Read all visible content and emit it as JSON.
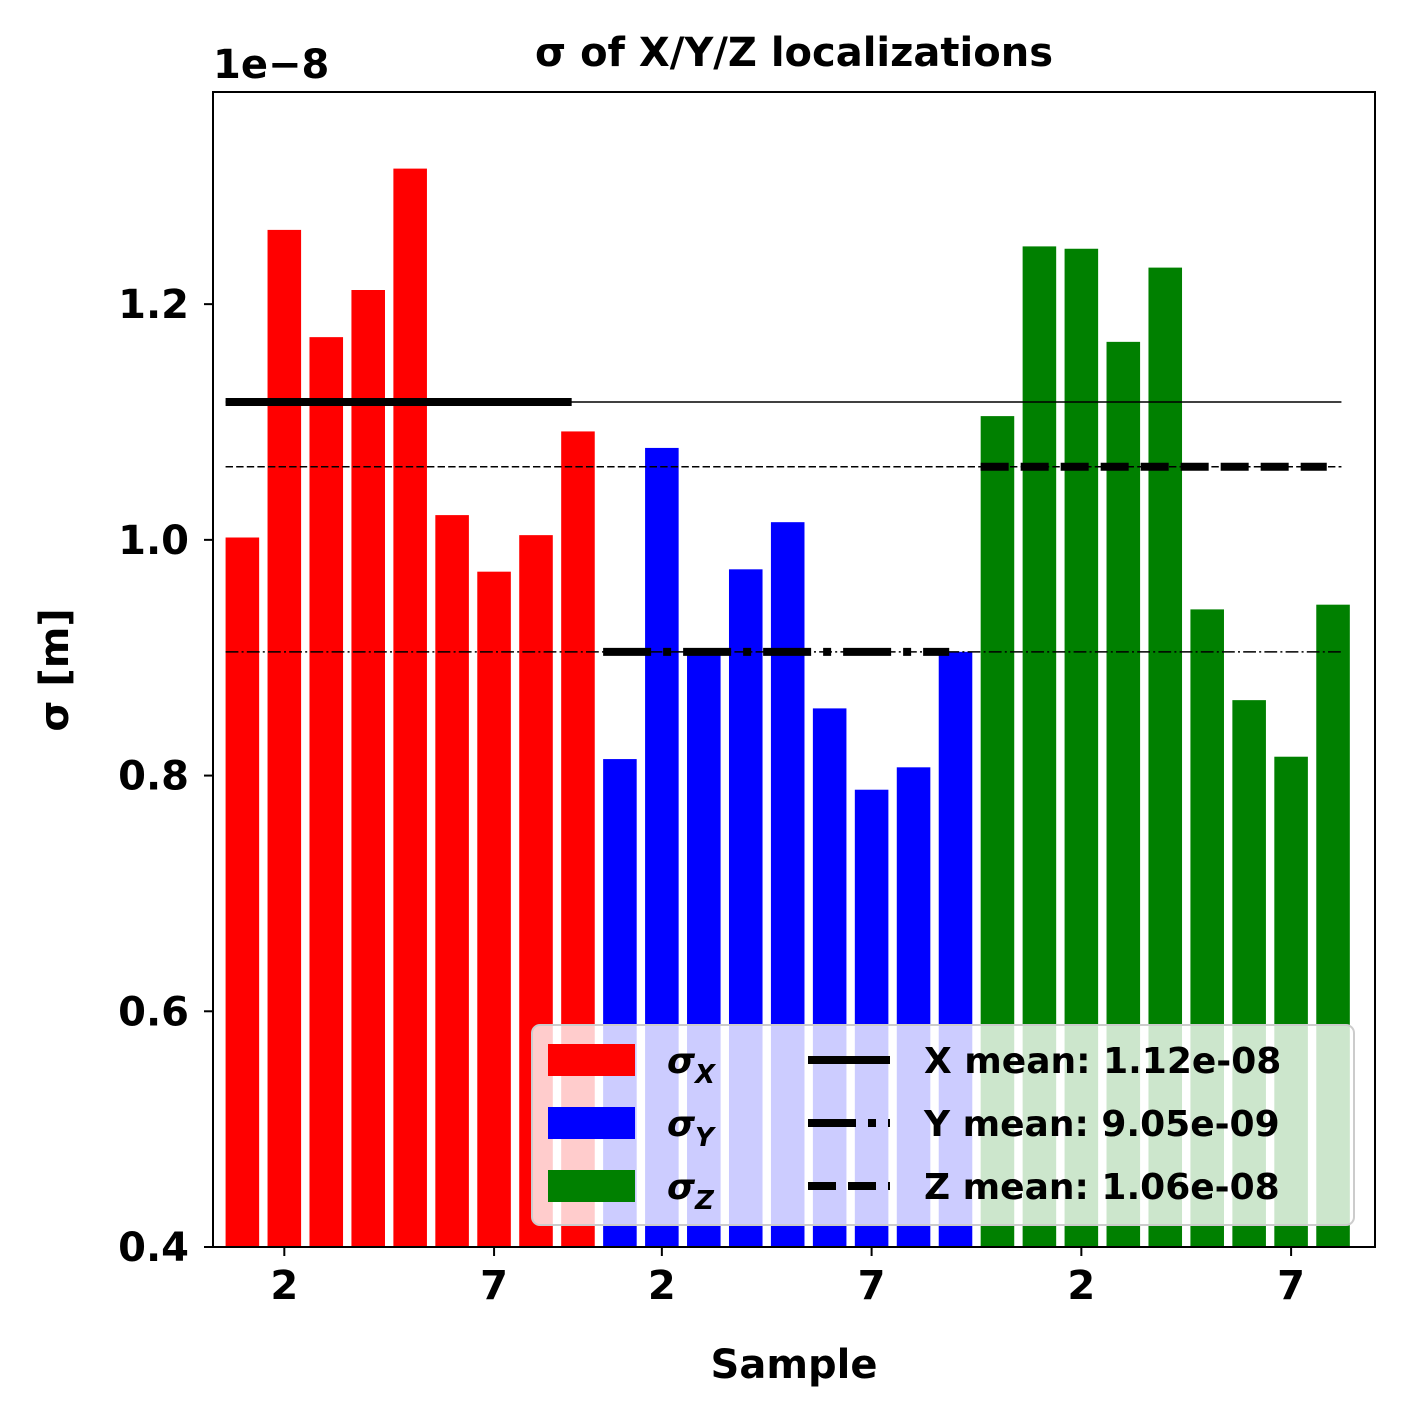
{
  "chart_data": {
    "type": "bar",
    "title": "σ of X/Y/Z localizations",
    "xlabel": "Sample",
    "ylabel": "σ [m]",
    "offset_label": "1e−8",
    "ylim": [
      0.4,
      1.38
    ],
    "yticks": [
      "0.4",
      "0.6",
      "0.8",
      "1.0",
      "1.2"
    ],
    "xtick_labels": [
      "2",
      "7",
      "2",
      "7",
      "2",
      "7"
    ],
    "xtick_positions": [
      2,
      7,
      11,
      16,
      21,
      26
    ],
    "grid": false,
    "legend_placement": "lower right",
    "series": [
      {
        "name": "σ_X",
        "color": "#ff0000",
        "x": [
          1,
          2,
          3,
          4,
          5,
          6,
          7,
          8,
          9
        ],
        "values": [
          1.002,
          1.263,
          1.172,
          1.212,
          1.315,
          1.021,
          0.973,
          1.004,
          1.092
        ]
      },
      {
        "name": "σ_Y",
        "color": "#0000ff",
        "x": [
          10,
          11,
          12,
          13,
          14,
          15,
          16,
          17,
          18
        ],
        "values": [
          0.814,
          1.078,
          0.905,
          0.975,
          1.015,
          0.857,
          0.788,
          0.807,
          0.905
        ]
      },
      {
        "name": "σ_Z",
        "color": "#008000",
        "x": [
          19,
          20,
          21,
          22,
          23,
          24,
          25,
          26,
          27
        ],
        "values": [
          1.105,
          1.249,
          1.247,
          1.168,
          1.231,
          0.941,
          0.864,
          0.816,
          0.945
        ]
      }
    ],
    "means": [
      {
        "label": "X mean: 1.12e-08",
        "value": 1.117,
        "style": "solid",
        "x_range": [
          1,
          9
        ]
      },
      {
        "label": "Y mean: 9.05e-09",
        "value": 0.905,
        "style": "dashdot",
        "x_range": [
          10,
          18
        ]
      },
      {
        "label": "Z mean: 1.06e-08",
        "value": 1.062,
        "style": "dashed",
        "x_range": [
          19,
          27
        ]
      }
    ]
  }
}
